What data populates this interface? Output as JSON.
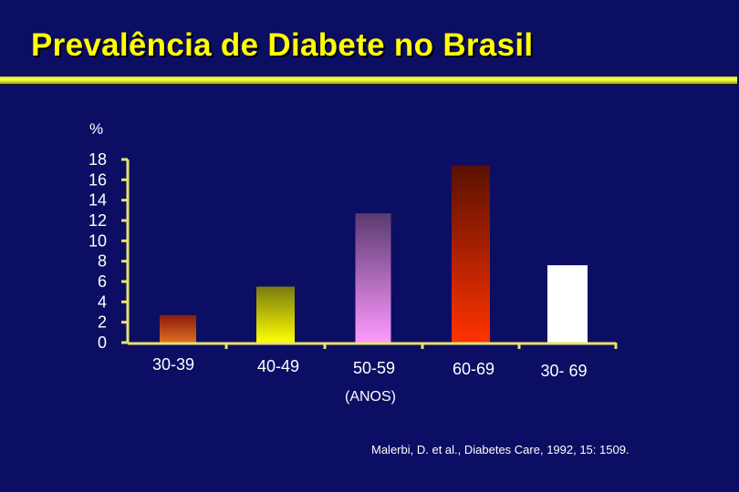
{
  "colors": {
    "background": "#0c0e63",
    "title": "#ffff00",
    "axis": "#e8e070",
    "text": "#ffffff"
  },
  "chart_data": {
    "type": "bar",
    "title": "Prevalência de Diabete no Brasil",
    "ylabel": "%",
    "xlabel": "(ANOS)",
    "ylim": [
      0,
      18
    ],
    "yticks": [
      "18",
      "16",
      "14",
      "12",
      "10",
      "8",
      "6",
      "4",
      "2",
      "0"
    ],
    "categories": [
      "30-39",
      "40-49",
      "50-59",
      "60-69",
      "30- 69"
    ],
    "values": [
      2.7,
      5.5,
      12.7,
      17.4,
      7.6
    ],
    "bar_gradients": [
      [
        "#8a1a10",
        "#e07020"
      ],
      [
        "#7a7a10",
        "#ffff00"
      ],
      [
        "#5a3a70",
        "#ff99ff"
      ],
      [
        "#5a1000",
        "#ff3300"
      ],
      [
        "#ffffff",
        "#ffffff"
      ]
    ],
    "grid": false,
    "legend": "none",
    "source": "Malerbi, D. et al., Diabetes Care, 1992, 15: 1509."
  }
}
